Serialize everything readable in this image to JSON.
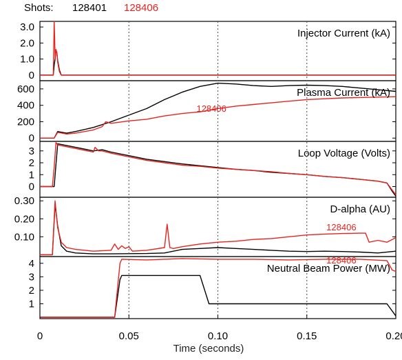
{
  "header": {
    "label": "Shots:",
    "shot_a": "128401",
    "shot_b": "128406"
  },
  "colors": {
    "shot_a": "#000000",
    "shot_b": "#e8221e",
    "grid": "#555555"
  },
  "chart_data": {
    "type": "line",
    "xlabel": "Time (seconds)",
    "xlim": [
      0,
      0.2
    ],
    "xticks": [
      0,
      0.05,
      0.1,
      0.15,
      0.2
    ],
    "xtick_labels": [
      "0",
      "0.05",
      "0.10",
      "0.15",
      "0.20"
    ],
    "grid": "dotted vertical lines at x = 0.05, 0.10, 0.15",
    "panels": [
      {
        "title": "Injector Current (kA)",
        "ylim": [
          -0.35,
          3.35
        ],
        "yticks": [
          0,
          1.0,
          2.0,
          3.0
        ],
        "ytick_labels": [
          "0",
          "1.0",
          "2.0",
          "3.0"
        ],
        "series": [
          {
            "name": "128401",
            "x": [
              0,
              0.0075,
              0.008,
              0.0085,
              0.009,
              0.0095,
              0.01,
              0.011,
              0.012,
              0.2
            ],
            "y": [
              0,
              0,
              0.6,
              1.0,
              1.5,
              1.4,
              0.9,
              0.3,
              0,
              0
            ]
          },
          {
            "name": "128406",
            "x": [
              0,
              0.0075,
              0.0078,
              0.008,
              0.0083,
              0.0085,
              0.009,
              0.0095,
              0.01,
              0.011,
              0.012,
              0.2
            ],
            "y": [
              0,
              0,
              2.0,
              3.35,
              2.2,
              1.0,
              1.6,
              1.4,
              0.8,
              0.2,
              0,
              0
            ]
          }
        ]
      },
      {
        "title": "Plasma Current (kA)",
        "ylim": [
          -40,
          700
        ],
        "yticks": [
          0,
          200,
          400,
          600
        ],
        "ytick_labels": [
          "0",
          "200",
          "400",
          "600"
        ],
        "annotation": {
          "text": "128406",
          "x": 0.088,
          "y": 320
        },
        "series": [
          {
            "name": "128401",
            "x": [
              0,
              0.008,
              0.01,
              0.015,
              0.02,
              0.03,
              0.04,
              0.05,
              0.06,
              0.07,
              0.08,
              0.09,
              0.1,
              0.11,
              0.12,
              0.13,
              0.14,
              0.15,
              0.16,
              0.17,
              0.18,
              0.19,
              0.2
            ],
            "y": [
              0,
              0,
              80,
              60,
              80,
              130,
              200,
              280,
              360,
              470,
              560,
              630,
              670,
              660,
              640,
              630,
              640,
              645,
              640,
              630,
              610,
              590,
              570
            ]
          },
          {
            "name": "128406",
            "x": [
              0,
              0.008,
              0.01,
              0.015,
              0.02,
              0.03,
              0.035,
              0.037,
              0.04,
              0.05,
              0.06,
              0.07,
              0.08,
              0.09,
              0.1,
              0.11,
              0.12,
              0.13,
              0.14,
              0.15,
              0.16,
              0.17,
              0.18,
              0.19,
              0.2
            ],
            "y": [
              0,
              0,
              70,
              50,
              60,
              100,
              140,
              200,
              180,
              210,
              230,
              270,
              300,
              320,
              360,
              390,
              410,
              430,
              450,
              470,
              480,
              490,
              495,
              500,
              505
            ]
          }
        ]
      },
      {
        "title": "Loop Voltage (Volts)",
        "ylim": [
          -0.9,
          3.8
        ],
        "yticks": [
          0,
          1,
          2,
          3
        ],
        "ytick_labels": [
          "0",
          "1",
          "2",
          "3"
        ],
        "series": [
          {
            "name": "128401",
            "x": [
              0,
              0.008,
              0.01,
              0.02,
              0.03,
              0.035,
              0.04,
              0.05,
              0.06,
              0.07,
              0.08,
              0.09,
              0.1,
              0.11,
              0.12,
              0.13,
              0.14,
              0.15,
              0.16,
              0.17,
              0.18,
              0.19,
              0.195,
              0.198,
              0.2
            ],
            "y": [
              0,
              0,
              3.6,
              3.3,
              3.0,
              3.1,
              2.9,
              2.6,
              2.3,
              2.1,
              1.9,
              1.75,
              1.6,
              1.45,
              1.35,
              1.2,
              1.1,
              1.0,
              0.85,
              0.75,
              0.6,
              0.45,
              0.3,
              -0.4,
              -0.8
            ]
          },
          {
            "name": "128406",
            "x": [
              0,
              0.007,
              0.008,
              0.009,
              0.01,
              0.02,
              0.03,
              0.031,
              0.033,
              0.035,
              0.04,
              0.05,
              0.06,
              0.07,
              0.08,
              0.09,
              0.1,
              0.11,
              0.12,
              0.13,
              0.14,
              0.15,
              0.16,
              0.17,
              0.18,
              0.19,
              0.195,
              0.198,
              0.2
            ],
            "y": [
              0,
              0,
              1.6,
              3.7,
              3.5,
              3.2,
              2.9,
              3.3,
              3.0,
              3.0,
              2.8,
              2.5,
              2.2,
              2.0,
              1.8,
              1.7,
              1.55,
              1.45,
              1.35,
              1.25,
              1.1,
              1.0,
              0.85,
              0.75,
              0.6,
              0.45,
              0.3,
              -0.3,
              -0.7
            ]
          }
        ]
      },
      {
        "title": "D-alpha (AU)",
        "ylim": [
          -0.01,
          0.32
        ],
        "yticks": [
          0.1,
          0.2,
          0.3
        ],
        "ytick_labels": [
          "0.10",
          "0.20",
          "0.30"
        ],
        "annotation": {
          "text": "128406",
          "x": 0.161,
          "y": 0.135
        },
        "series": [
          {
            "name": "128401",
            "x": [
              0,
              0.007,
              0.0085,
              0.01,
              0.012,
              0.015,
              0.02,
              0.03,
              0.04,
              0.05,
              0.06,
              0.07,
              0.08,
              0.09,
              0.1,
              0.11,
              0.12,
              0.13,
              0.14,
              0.15,
              0.16,
              0.17,
              0.18,
              0.19,
              0.2
            ],
            "y": [
              0,
              0,
              0.28,
              0.16,
              0.05,
              0.02,
              0.01,
              0.005,
              0.005,
              0.006,
              0.007,
              0.01,
              0.03,
              0.035,
              0.04,
              0.035,
              0.03,
              0.025,
              0.02,
              0.018,
              0.02,
              0.018,
              0.015,
              0.01,
              0.02
            ]
          },
          {
            "name": "128406",
            "x": [
              0,
              0.007,
              0.0085,
              0.01,
              0.012,
              0.015,
              0.02,
              0.03,
              0.04,
              0.042,
              0.044,
              0.046,
              0.048,
              0.05,
              0.052,
              0.06,
              0.07,
              0.0715,
              0.073,
              0.075,
              0.08,
              0.09,
              0.1,
              0.11,
              0.12,
              0.13,
              0.14,
              0.15,
              0.16,
              0.17,
              0.18,
              0.183,
              0.185,
              0.19,
              0.195,
              0.2
            ],
            "y": [
              0,
              0,
              0.3,
              0.15,
              0.07,
              0.04,
              0.03,
              0.02,
              0.025,
              0.06,
              0.03,
              0.05,
              0.035,
              0.045,
              0.02,
              0.025,
              0.04,
              0.17,
              0.04,
              0.035,
              0.045,
              0.06,
              0.07,
              0.075,
              0.085,
              0.09,
              0.1,
              0.11,
              0.115,
              0.118,
              0.12,
              0.12,
              0.07,
              0.08,
              0.07,
              0.095
            ]
          }
        ]
      },
      {
        "title": "Neutral Beam Power (MW)",
        "ylim": [
          -0.1,
          4.5
        ],
        "yticks": [
          1,
          2,
          3,
          4
        ],
        "ytick_labels": [
          "1",
          "2",
          "3",
          "4"
        ],
        "annotation": {
          "text": "128406",
          "x": 0.161,
          "y": 4.0
        },
        "series": [
          {
            "name": "128401",
            "x": [
              0,
              0.042,
              0.045,
              0.046,
              0.09,
              0.095,
              0.195,
              0.2
            ],
            "y": [
              0,
              0,
              2.8,
              3.1,
              3.1,
              1.0,
              1.0,
              0.1
            ]
          },
          {
            "name": "128406",
            "x": [
              0,
              0.042,
              0.045,
              0.046,
              0.06,
              0.08,
              0.1,
              0.12,
              0.14,
              0.16,
              0.18,
              0.195,
              0.198,
              0.2
            ],
            "y": [
              0,
              0,
              4.0,
              4.3,
              4.25,
              4.35,
              4.3,
              4.3,
              4.25,
              4.3,
              4.3,
              4.2,
              3.5,
              3.4
            ]
          }
        ]
      }
    ]
  }
}
